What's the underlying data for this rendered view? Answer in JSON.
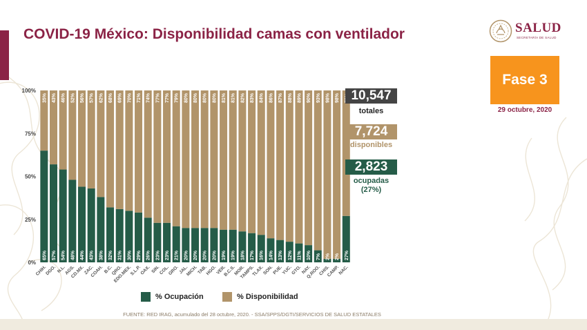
{
  "title": "COVID-19 México: Disponibilidad camas con ventilador",
  "logo": {
    "word": "SALUD",
    "sub": "SECRETARÍA DE SALUD",
    "icon": "eagle-seal-icon"
  },
  "phase": "Fase 3",
  "date": "29 octubre, 2020",
  "totals": {
    "total": "10,547",
    "total_label": "totales",
    "available": "7,724",
    "available_label": "disponibles",
    "occupied": "2,823",
    "occupied_label": "ocupadas",
    "occupied_pct": "(27%)"
  },
  "legend": {
    "occupancy": "% Ocupación",
    "availability": "% Disponibilidad"
  },
  "source": "FUENTE: RED IRAG, acumulado del 28 octubre, 2020. -  SSA/SPPS/DGTI/SERVICIOS DE SALUD ESTATALES",
  "colors": {
    "occupancy": "#255c48",
    "availability": "#b1946a",
    "title": "#8b2346",
    "phase": "#f7941d",
    "total_box": "#444444"
  },
  "chart_data": {
    "type": "bar",
    "stacked": true,
    "categories": [
      "CHIH.",
      "DGO.",
      "N.L.",
      "AGS.",
      "CD.MX.",
      "ZAC.",
      "COAH.",
      "B.C.",
      "QRO.",
      "EDO.MEX.",
      "S.L.P.",
      "OAX.",
      "SIN.",
      "COL.",
      "GRO.",
      "JAL.",
      "MICH.",
      "TAB.",
      "HGO.",
      "VER.",
      "B.C.S.",
      "MOR.",
      "TAMPS.",
      "TLAX.",
      "SON.",
      "PUE.",
      "YUC.",
      "GTO.",
      "NAY.",
      "Q.ROO.",
      "CHIS.",
      "CAMP.",
      "NAC."
    ],
    "series": [
      {
        "name": "% Ocupación",
        "values": [
          65,
          57,
          54,
          48,
          44,
          43,
          38,
          32,
          31,
          30,
          29,
          26,
          23,
          23,
          21,
          20,
          20,
          20,
          20,
          19,
          19,
          18,
          17,
          16,
          14,
          13,
          12,
          11,
          10,
          7,
          2,
          2,
          27
        ]
      },
      {
        "name": "% Disponibilidad",
        "values": [
          35,
          43,
          46,
          52,
          56,
          57,
          62,
          68,
          69,
          70,
          71,
          74,
          77,
          77,
          79,
          80,
          80,
          80,
          80,
          81,
          81,
          82,
          83,
          84,
          86,
          87,
          88,
          89,
          90,
          93,
          98,
          98,
          73
        ]
      }
    ],
    "y_ticks": [
      "0%",
      "25%",
      "50%",
      "75%",
      "100%"
    ],
    "ylim": [
      0,
      100
    ],
    "value_suffix": "%",
    "legend_position": "bottom",
    "grid": false
  }
}
